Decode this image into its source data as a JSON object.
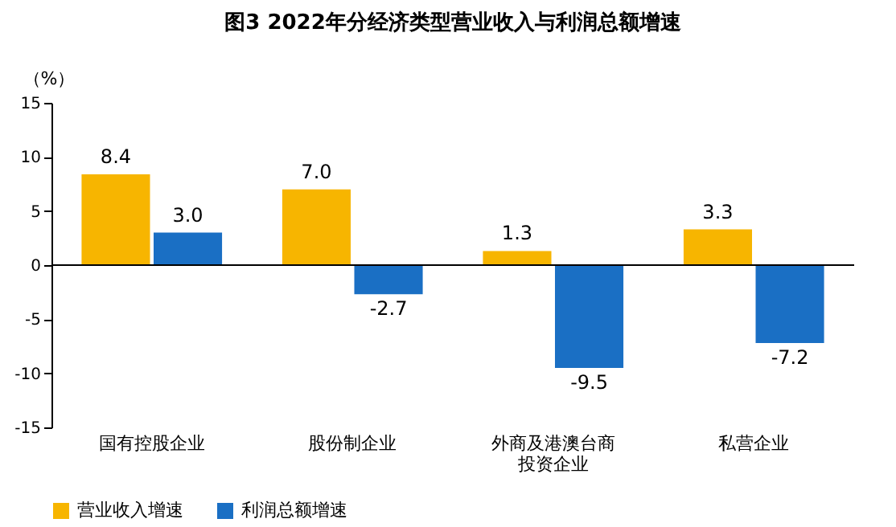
{
  "chart_data": {
    "type": "bar",
    "title": "图3  2022年分经济类型营业收入与利润总额增速",
    "ylabel": "（%）",
    "categories": [
      "国有控股企业",
      "股份制企业",
      "外商及港澳台商投资企业",
      "私营企业"
    ],
    "series": [
      {
        "name": "营业收入增速",
        "color": "#f7b500",
        "values": [
          8.4,
          7.0,
          1.3,
          3.3
        ],
        "value_labels": [
          "8.4",
          "7.0",
          "1.3",
          "3.3"
        ]
      },
      {
        "name": "利润总额增速",
        "color": "#1a6fc4",
        "values": [
          3.0,
          -2.7,
          -9.5,
          -7.2
        ],
        "value_labels": [
          "3.0",
          "-2.7",
          "-9.5",
          "-7.2"
        ]
      }
    ],
    "ylim": [
      -15,
      15
    ],
    "yticks": [
      -15,
      -10,
      -5,
      0,
      5,
      10,
      15
    ],
    "legend": "bottom",
    "ref_lines": [
      {
        "axis": "y",
        "value": 0,
        "color": "#000000"
      }
    ]
  }
}
